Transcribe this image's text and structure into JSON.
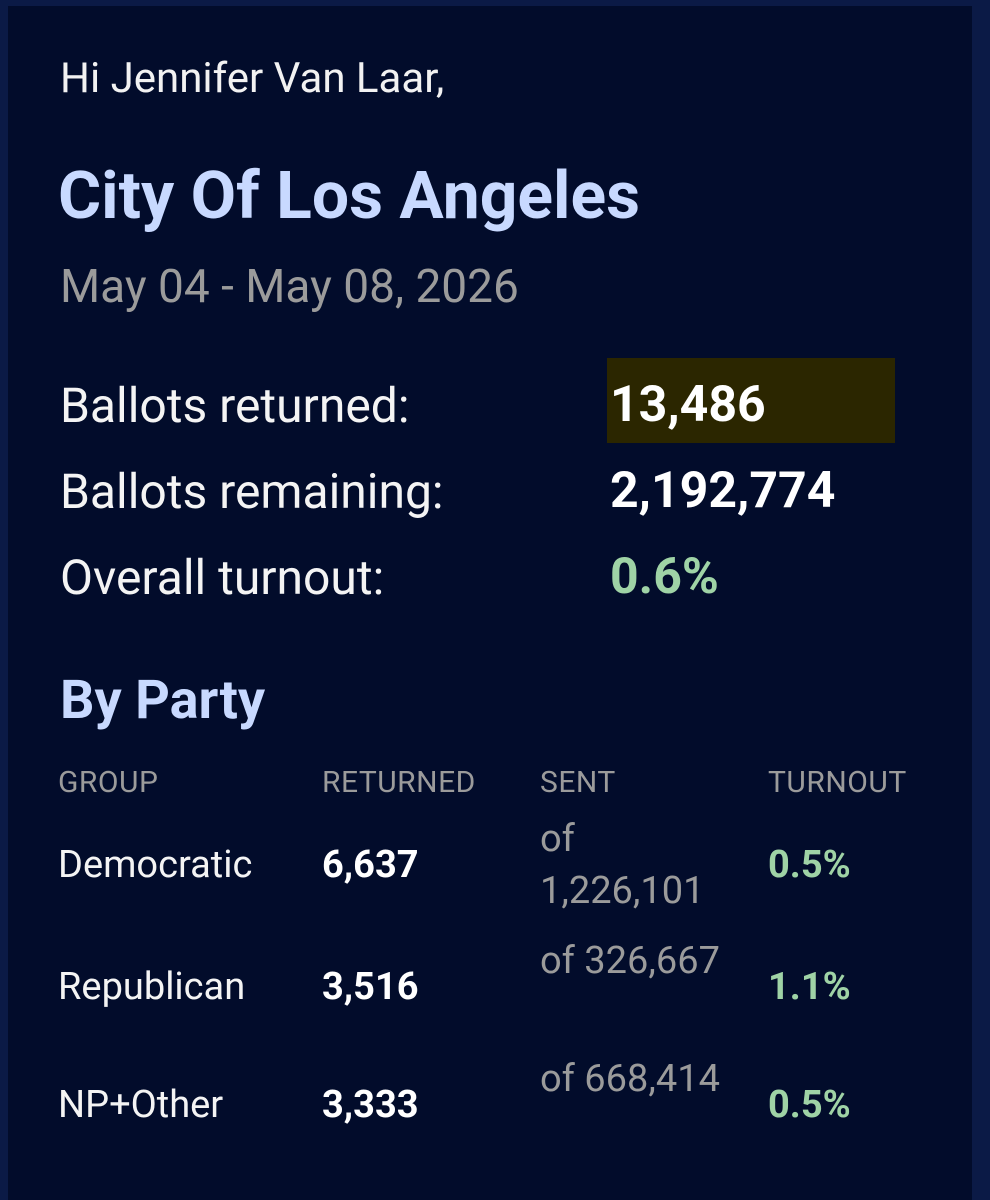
{
  "greeting": "Hi Jennifer Van Laar,",
  "title": "City Of Los Angeles",
  "date_range": "May 04 - May 08, 2026",
  "summary": [
    {
      "label": "Ballots returned:",
      "value": "13,486"
    },
    {
      "label": "Ballots remaining:",
      "value": "2,192,774"
    },
    {
      "label": "Overall turnout:",
      "value": "0.6%"
    }
  ],
  "by_party": {
    "heading": "By Party",
    "columns": [
      "GROUP",
      "RETURNED",
      "SENT",
      "TURNOUT"
    ],
    "rows": [
      [
        "Democratic",
        "6,637",
        "of 1,226,101",
        "0.5%"
      ],
      [
        "Republican",
        "3,516",
        "of 326,667",
        "1.1%"
      ],
      [
        "NP+Other",
        "3,333",
        "of 668,414",
        "0.5%"
      ]
    ]
  }
}
